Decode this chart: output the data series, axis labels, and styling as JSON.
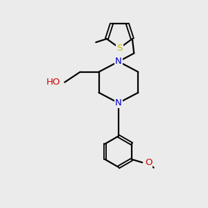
{
  "background_color": "#ebebeb",
  "bond_color": "#000000",
  "nitrogen_color": "#0000cc",
  "oxygen_color": "#cc0000",
  "sulfur_color": "#bbbb00",
  "line_width": 1.6,
  "fig_size": [
    3.0,
    3.0
  ],
  "dpi": 100,
  "xlim": [
    0,
    10
  ],
  "ylim": [
    0,
    10
  ],
  "font_size": 9.5
}
